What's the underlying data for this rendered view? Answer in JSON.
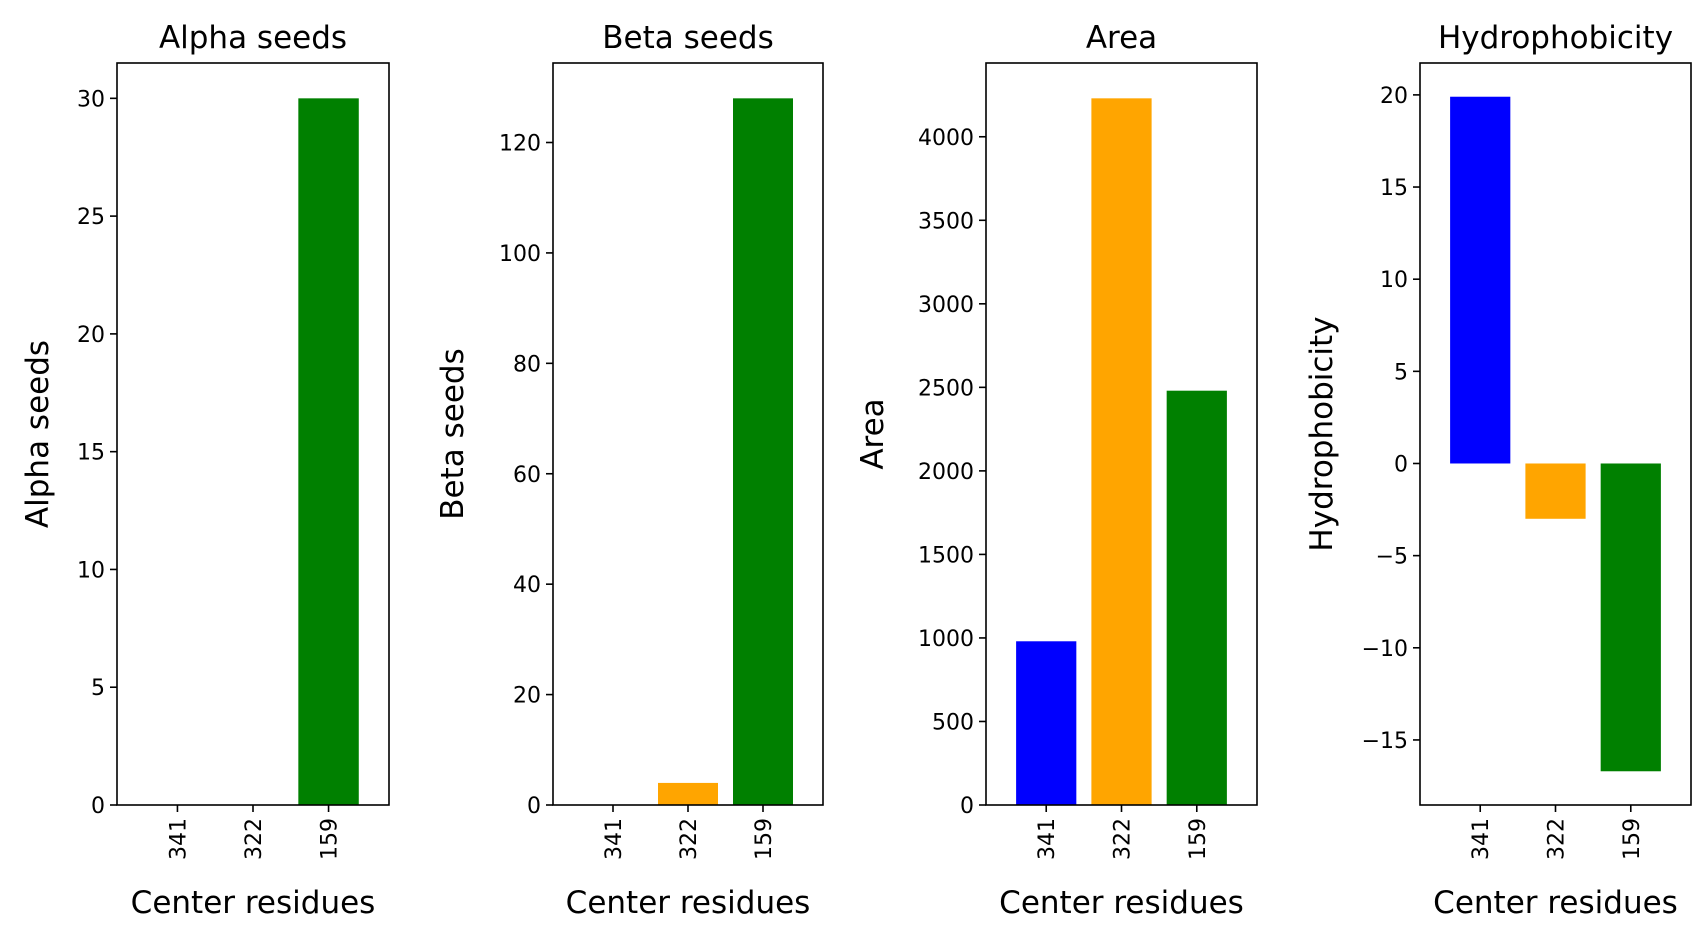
{
  "chart_data": [
    {
      "type": "bar",
      "title": "Alpha seeds",
      "xlabel": "Center residues",
      "ylabel": "Alpha seeds",
      "categories": [
        "341",
        "322",
        "159"
      ],
      "values": [
        0,
        0,
        30
      ],
      "colors": [
        "#0000ff",
        "#ffa500",
        "#008000"
      ],
      "ylim": [
        0,
        31.5
      ],
      "yticks": [
        0,
        5,
        10,
        15,
        20,
        25,
        30
      ],
      "ytick_labels": [
        "0",
        "5",
        "10",
        "15",
        "20",
        "25",
        "30"
      ],
      "grid": false
    },
    {
      "type": "bar",
      "title": "Beta seeds",
      "xlabel": "Center residues",
      "ylabel": "Beta seeds",
      "categories": [
        "341",
        "322",
        "159"
      ],
      "values": [
        0,
        4,
        128
      ],
      "colors": [
        "#0000ff",
        "#ffa500",
        "#008000"
      ],
      "ylim": [
        0,
        134.4
      ],
      "yticks": [
        0,
        20,
        40,
        60,
        80,
        100,
        120
      ],
      "ytick_labels": [
        "0",
        "20",
        "40",
        "60",
        "80",
        "100",
        "120"
      ],
      "grid": false
    },
    {
      "type": "bar",
      "title": "Area",
      "xlabel": "Center residues",
      "ylabel": "Area",
      "categories": [
        "341",
        "322",
        "159"
      ],
      "values": [
        980,
        4230,
        2480
      ],
      "colors": [
        "#0000ff",
        "#ffa500",
        "#008000"
      ],
      "ylim": [
        0,
        4441.5
      ],
      "yticks": [
        0,
        500,
        1000,
        1500,
        2000,
        2500,
        3000,
        3500,
        4000
      ],
      "ytick_labels": [
        "0",
        "500",
        "1000",
        "1500",
        "2000",
        "2500",
        "3000",
        "3500",
        "4000"
      ],
      "grid": false
    },
    {
      "type": "bar",
      "title": "Hydrophobicity",
      "xlabel": "Center residues",
      "ylabel": "Hydrophobicity",
      "categories": [
        "341",
        "322",
        "159"
      ],
      "values": [
        19.9,
        -3.0,
        -16.7
      ],
      "colors": [
        "#0000ff",
        "#ffa500",
        "#008000"
      ],
      "ylim": [
        -18.53,
        21.73
      ],
      "yticks": [
        -15,
        -10,
        -5,
        0,
        5,
        10,
        15,
        20
      ],
      "ytick_labels": [
        "−15",
        "−10",
        "−5",
        "0",
        "5",
        "10",
        "15",
        "20"
      ],
      "grid": false
    }
  ]
}
